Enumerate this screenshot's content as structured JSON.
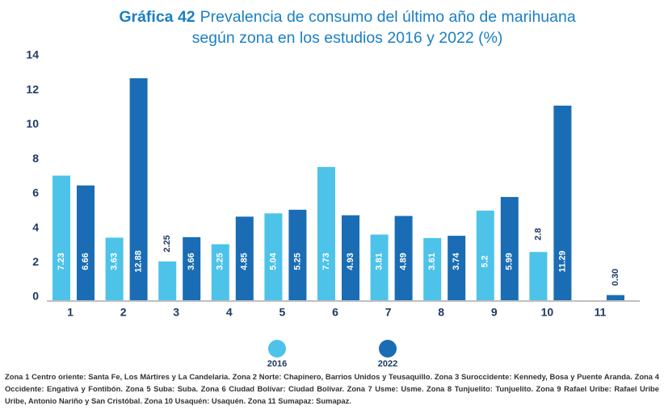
{
  "chart_data": {
    "type": "bar",
    "label": "Gráfica 42",
    "title": [
      "Prevalencia de consumo del último año de marihuana",
      "según zona en los estudios 2016 y 2022 (%)"
    ],
    "categories": [
      "1",
      "2",
      "3",
      "4",
      "5",
      "6",
      "7",
      "8",
      "9",
      "10",
      "11"
    ],
    "series": [
      {
        "name": "2016",
        "color": "#4dc3ea",
        "values": [
          7.23,
          3.63,
          2.25,
          3.25,
          5.04,
          7.73,
          3.81,
          3.61,
          5.2,
          2.8,
          null
        ]
      },
      {
        "name": "2022",
        "color": "#1a6db4",
        "values": [
          6.66,
          12.88,
          3.66,
          4.85,
          5.25,
          4.93,
          4.89,
          3.74,
          5.99,
          11.29,
          0.3
        ],
        "value_labels": [
          "6.66",
          "12.88",
          "3.66",
          "4.85",
          "5.25",
          "4.93",
          "4.89",
          "3.74",
          "5.99",
          "11.29",
          "0.30"
        ]
      }
    ],
    "ylim": [
      0,
      14
    ],
    "yticks": [
      0,
      2,
      4,
      6,
      8,
      10,
      12,
      14
    ],
    "grid": false,
    "legend": "bottom",
    "note": "Zona 1 Centro oriente: Santa Fe, Los Mártires y La Candelaria. Zona 2 Norte: Chapinero, Barrios Unidos y Teusaquillo. Zona 3 Suroccidente: Kennedy, Bosa y Puente Aranda. Zona 4 Occidente: Engativá y Fontibón. Zona 5 Suba: Suba. Zona 6 Ciudad Bolívar: Ciudad Bolívar. Zona 7 Usme: Usme. Zona 8 Tunjuelito: Tunjuelito. Zona 9 Rafael Uribe: Rafael Uribe Uribe, Antonio Nariño y San Cristóbal. Zona 10 Usaquén: Usaquén. Zona 11 Sumapaz: Sumapaz."
  }
}
